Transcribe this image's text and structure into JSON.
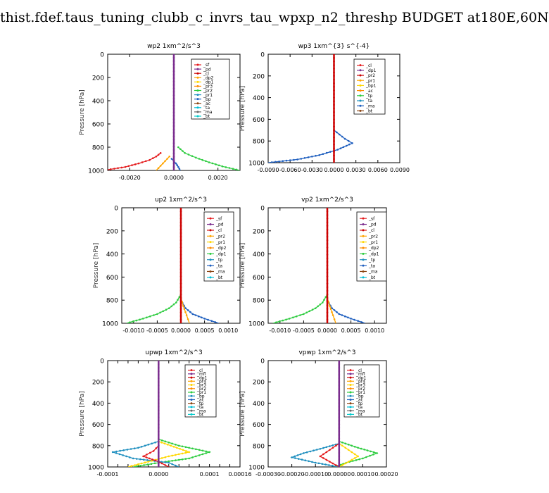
{
  "title": "thist.fdef.taus_tuning_clubb_c_invrs_tau_wpxp_n2_threshp  BUDGET at180E,60N",
  "chart_data": [
    {
      "type": "line",
      "title": "wp2   1xm^2/s^3",
      "ylabel": "Pressure [hPa]",
      "xlim": [
        -0.003,
        0.003
      ],
      "ylim": [
        1000,
        0
      ],
      "xticks": [
        -0.002,
        0.0,
        0.002
      ],
      "xtick_labels": [
        "-0.0020",
        "0.0000",
        "0.0020"
      ],
      "yticks": [
        0,
        200,
        400,
        600,
        800,
        1000
      ],
      "legend": "top-right",
      "legend_entries": [
        "_sf",
        "_pd",
        "_cl",
        "_dp2",
        "_dp1",
        "_pr3",
        "_pr2",
        "_pr1",
        "_bp",
        "_ac",
        "_ta",
        "_ma",
        "_bt"
      ],
      "series": [
        {
          "name": "_dp1",
          "color": "#e41a1c",
          "x": [
            -0.0006,
            -0.0008,
            -0.0011,
            -0.0016,
            -0.0022,
            -0.0032
          ],
          "y": [
            850,
            880,
            910,
            940,
            970,
            1000
          ]
        },
        {
          "name": "_pr1",
          "color": "#ffa500",
          "x": [
            -0.0002,
            -0.0004,
            -0.0006,
            -0.0008
          ],
          "y": [
            880,
            920,
            960,
            1000
          ]
        },
        {
          "name": "_bp",
          "color": "#2ecc40",
          "x": [
            0.0002,
            0.0005,
            0.001,
            0.0016,
            0.0022,
            0.003
          ],
          "y": [
            800,
            850,
            890,
            930,
            965,
            1000
          ]
        },
        {
          "name": "_ta",
          "color": "#1f5fbf",
          "x": [
            -0.0001,
            0.0001,
            0.0002,
            0.0003
          ],
          "y": [
            900,
            940,
            970,
            1000
          ]
        },
        {
          "name": "_pd",
          "color": "#7b2d8e",
          "x": [
            0.0,
            0.0,
            0.0
          ],
          "y": [
            0,
            500,
            1000
          ]
        }
      ]
    },
    {
      "type": "line",
      "title": "wp3   1xm^{3} s^{-4}",
      "ylabel": "Pressure [hPa]",
      "xlim": [
        -0.009,
        0.009
      ],
      "ylim": [
        1000,
        0
      ],
      "xticks": [
        -0.009,
        -0.006,
        -0.003,
        0.0,
        0.003,
        0.006,
        0.009
      ],
      "xtick_labels": [
        "-0.0090",
        "-0.0060",
        "-0.0030",
        "0.0000",
        "0.0030",
        "0.0060",
        "0.0090"
      ],
      "yticks": [
        0,
        200,
        400,
        600,
        800,
        1000
      ],
      "legend": "top-right",
      "legend_entries": [
        "_cl",
        "_dp1",
        "_pr2",
        "_pr1",
        "_bp1",
        "_ac",
        "_tp",
        "_ta",
        "_ma",
        "_bt"
      ],
      "series": [
        {
          "name": "_tp",
          "color": "#1f5fbf",
          "x": [
            0.0,
            0.0015,
            0.0025,
            0.0005,
            -0.002,
            -0.005,
            -0.009
          ],
          "y": [
            700,
            780,
            820,
            880,
            930,
            970,
            1000
          ]
        },
        {
          "name": "_cl",
          "color": "#cc0000",
          "x": [
            0.0,
            0.0,
            0.0
          ],
          "y": [
            0,
            500,
            1000
          ]
        }
      ]
    },
    {
      "type": "line",
      "title": "up2   1xm^2/s^3",
      "ylabel": "Pressure [hPa]",
      "xlim": [
        -0.00125,
        0.00125
      ],
      "ylim": [
        1000,
        0
      ],
      "xticks": [
        -0.001,
        -0.0005,
        0.0,
        0.0005,
        0.001
      ],
      "xtick_labels": [
        "-0.0010",
        "-0.0005",
        "0.0000",
        "0.0005",
        "0.0010"
      ],
      "yticks": [
        0,
        200,
        400,
        600,
        800,
        1000
      ],
      "legend": "top-right",
      "legend_entries": [
        "_sf",
        "_pd",
        "_cl",
        "_pr2",
        "_pr1",
        "_dp2",
        "_dp1",
        "_tp",
        "_ta",
        "_ma",
        "_bt"
      ],
      "series": [
        {
          "name": "_dp1",
          "color": "#2ecc40",
          "x": [
            0.0,
            -0.0001,
            -0.00025,
            -0.0005,
            -0.0008,
            -0.00115
          ],
          "y": [
            750,
            820,
            870,
            920,
            960,
            1000
          ]
        },
        {
          "name": "_tp",
          "color": "#1f5fbf",
          "x": [
            0.0,
            0.0001,
            0.00025,
            0.0005,
            0.0008
          ],
          "y": [
            800,
            870,
            920,
            960,
            1000
          ]
        },
        {
          "name": "_pr1",
          "color": "#ffa500",
          "x": [
            0.0,
            5e-05,
            0.00012,
            0.00018
          ],
          "y": [
            780,
            850,
            930,
            1000
          ]
        },
        {
          "name": "_cl",
          "color": "#cc0000",
          "x": [
            0.0,
            0.0,
            0.0
          ],
          "y": [
            0,
            500,
            1000
          ]
        }
      ]
    },
    {
      "type": "line",
      "title": "vp2   1xm^2/s^3",
      "ylabel": "Pressure [hPa]",
      "xlim": [
        -0.00125,
        0.00125
      ],
      "ylim": [
        1000,
        0
      ],
      "xticks": [
        -0.001,
        -0.0005,
        0.0,
        0.0005,
        0.001
      ],
      "xtick_labels": [
        "-0.0010",
        "-0.0005",
        "0.0000",
        "0.0005",
        "0.0010"
      ],
      "yticks": [
        0,
        200,
        400,
        600,
        800,
        1000
      ],
      "legend": "top-right",
      "legend_entries": [
        "_sf",
        "_pd",
        "_cl",
        "_pr2",
        "_pr1",
        "_dp2",
        "_dp1",
        "_tp",
        "_ta",
        "_ma",
        "_bt"
      ],
      "series": [
        {
          "name": "_dp1",
          "color": "#2ecc40",
          "x": [
            0.0,
            -0.0001,
            -0.00025,
            -0.0005,
            -0.0008,
            -0.00115
          ],
          "y": [
            750,
            820,
            870,
            920,
            960,
            1000
          ]
        },
        {
          "name": "_tp",
          "color": "#1f5fbf",
          "x": [
            0.0,
            0.0001,
            0.00025,
            0.0005,
            0.0008
          ],
          "y": [
            800,
            870,
            920,
            960,
            1000
          ]
        },
        {
          "name": "_pr1",
          "color": "#ffa500",
          "x": [
            0.0,
            5e-05,
            0.00012,
            0.00018
          ],
          "y": [
            780,
            850,
            930,
            1000
          ]
        },
        {
          "name": "_cl",
          "color": "#cc0000",
          "x": [
            0.0,
            0.0,
            0.0
          ],
          "y": [
            0,
            500,
            1000
          ]
        }
      ]
    },
    {
      "type": "line",
      "title": "upwp   1xm^2/s^3",
      "ylabel": "Pressure [hPa]",
      "xlim": [
        -0.0001,
        0.00016
      ],
      "ylim": [
        1000,
        0
      ],
      "xticks": [
        -0.0001,
        -8e-05,
        -6e-05,
        -4e-05,
        -2e-05,
        0.0,
        2e-05,
        4e-05,
        6e-05,
        8e-05,
        0.0001,
        0.00012,
        0.00014,
        0.00016
      ],
      "xtick_labels": [
        "-0.0001",
        "",
        "",
        "",
        "",
        "0.0000",
        "",
        "",
        "",
        "",
        "0.0001",
        "",
        "",
        "0.00016"
      ],
      "yticks": [
        0,
        200,
        400,
        600,
        800,
        1000
      ],
      "legend": "top-right",
      "legend_entries": [
        "_cl",
        "_mfl",
        "_dp1",
        "_pr4",
        "_pr3",
        "_pr2",
        "_pr1",
        "_bp",
        "_ac",
        "_tp",
        "_ta",
        "_ma",
        "_bt"
      ],
      "series": [
        {
          "name": "_bp",
          "color": "#2ecc40",
          "x": [
            0.0,
            4e-05,
            0.0001,
            6e-05,
            0.0,
            -5e-05
          ],
          "y": [
            740,
            800,
            860,
            920,
            960,
            1000
          ]
        },
        {
          "name": "_tp",
          "color": "#1f8fbf",
          "x": [
            0.0,
            -4e-05,
            -9e-05,
            -5e-05,
            2e-05,
            4e-05
          ],
          "y": [
            760,
            820,
            860,
            920,
            960,
            1000
          ]
        },
        {
          "name": "_pr1",
          "color": "#ffd700",
          "x": [
            0.0,
            3e-05,
            6e-05,
            2e-05,
            -2e-05,
            -6e-05
          ],
          "y": [
            760,
            810,
            860,
            900,
            950,
            1000
          ]
        },
        {
          "name": "_pr3",
          "color": "#e41a1c",
          "x": [
            0.0,
            -1e-05,
            -3e-05,
            0.0,
            2e-05
          ],
          "y": [
            800,
            850,
            900,
            950,
            1000
          ]
        },
        {
          "name": "_cl",
          "color": "#7b2d8e",
          "x": [
            0.0,
            0.0,
            0.0
          ],
          "y": [
            0,
            500,
            1000
          ]
        }
      ]
    },
    {
      "type": "line",
      "title": "vpwp   1xm^2/s^3",
      "ylabel": "Pressure [hPa]",
      "xlim": [
        -0.0003,
        0.0002
      ],
      "ylim": [
        1000,
        0
      ],
      "xticks": [
        -0.0003,
        -0.0002,
        -0.0001,
        0.0,
        0.0001,
        0.0002
      ],
      "xtick_labels": [
        "-0.00030",
        "-0.00020",
        "-0.00010",
        "0.00000",
        "0.00010",
        "0.00020"
      ],
      "yticks": [
        0,
        200,
        400,
        600,
        800,
        1000
      ],
      "legend": "top-right",
      "legend_entries": [
        "_cl",
        "_mfl",
        "_dp1",
        "_pr4",
        "_pr3",
        "_pr2",
        "_pr1",
        "_bp",
        "_ac",
        "_tp",
        "_ta",
        "_ma",
        "_bt"
      ],
      "series": [
        {
          "name": "_bp",
          "color": "#2ecc40",
          "x": [
            0.0,
            8e-05,
            0.00016,
            0.0001,
            3e-05,
            -2e-05
          ],
          "y": [
            760,
            820,
            870,
            920,
            960,
            1000
          ]
        },
        {
          "name": "_tp",
          "color": "#1f8fbf",
          "x": [
            0.0,
            -8e-05,
            -0.00015,
            -0.0002,
            -0.0001,
            0.0
          ],
          "y": [
            780,
            830,
            870,
            910,
            960,
            1000
          ]
        },
        {
          "name": "_pr1",
          "color": "#ffd700",
          "x": [
            0.0,
            4e-05,
            8e-05,
            4e-05,
            0.0
          ],
          "y": [
            780,
            840,
            900,
            950,
            1000
          ]
        },
        {
          "name": "_pr3",
          "color": "#e41a1c",
          "x": [
            0.0,
            -4e-05,
            -8e-05,
            -4e-05,
            0.0
          ],
          "y": [
            780,
            840,
            900,
            950,
            1000
          ]
        },
        {
          "name": "_cl",
          "color": "#7b2d8e",
          "x": [
            0.0,
            0.0,
            0.0
          ],
          "y": [
            0,
            500,
            1000
          ]
        }
      ]
    }
  ]
}
